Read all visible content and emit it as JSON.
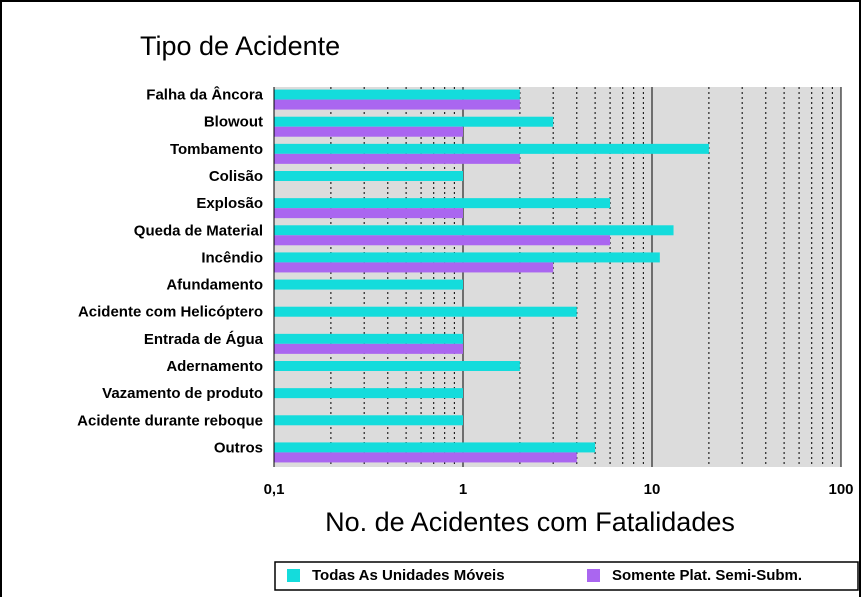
{
  "chart_data": {
    "type": "bar",
    "orientation": "horizontal",
    "title": "Tipo de Acidente",
    "x_label": "No. de Acidentes com Fatalidades",
    "categories": [
      "Falha da Âncora",
      "Blowout",
      "Tombamento",
      "Colisão",
      "Explosão",
      "Queda de Material",
      "Incêndio",
      "Afundamento",
      "Acidente com Helicóptero",
      "Entrada de Água",
      "Adernamento",
      "Vazamento de produto",
      "Acidente durante reboque",
      "Outros"
    ],
    "series": [
      {
        "name": "Todas As Unidades Móveis",
        "color": "#14dcdc",
        "values": [
          2,
          3,
          20,
          1,
          6,
          13,
          11,
          1,
          4,
          1,
          2,
          1,
          1,
          5
        ]
      },
      {
        "name": "Somente Plat. Semi-Subm.",
        "color": "#aa66f0",
        "values": [
          2,
          1,
          2,
          null,
          1,
          6,
          3,
          null,
          null,
          1,
          null,
          null,
          null,
          4
        ]
      }
    ],
    "x_scale": "log",
    "xlim": [
      0.1,
      100
    ],
    "xticks": [
      {
        "value": 0.1,
        "label": "0,1"
      },
      1,
      10,
      100
    ],
    "minor_xticks": [
      0.2,
      0.3,
      0.4,
      0.5,
      0.6,
      0.7,
      0.8,
      0.9,
      2,
      3,
      4,
      5,
      6,
      7,
      8,
      9,
      20,
      30,
      40,
      50,
      60,
      70,
      80,
      90
    ],
    "grid": true,
    "legend": "bottom"
  }
}
